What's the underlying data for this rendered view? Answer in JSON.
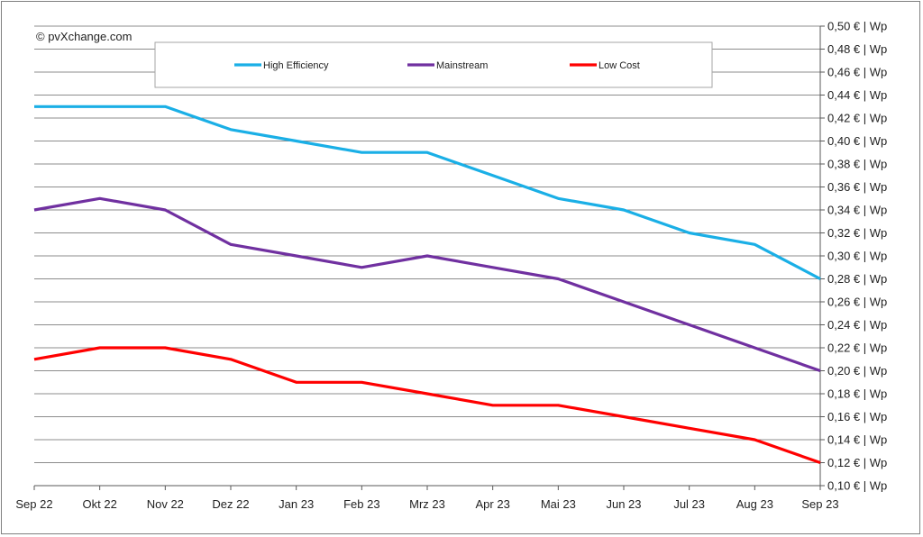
{
  "copyright": "© pvXchange.com",
  "chart_data": {
    "type": "line",
    "categories": [
      "Sep 22",
      "Okt 22",
      "Nov 22",
      "Dez 22",
      "Jan 23",
      "Feb 23",
      "Mrz 23",
      "Apr 23",
      "Mai 23",
      "Jun 23",
      "Jul 23",
      "Aug 23",
      "Sep 23"
    ],
    "y_tick_labels": [
      "0,10 € | Wp",
      "0,12 € | Wp",
      "0,14 € | Wp",
      "0,16 € | Wp",
      "0,18 € | Wp",
      "0,20 € | Wp",
      "0,22 € | Wp",
      "0,24 € | Wp",
      "0,26 € | Wp",
      "0,28 € | Wp",
      "0,30 € | Wp",
      "0,32 € | Wp",
      "0,34 € | Wp",
      "0,36 € | Wp",
      "0,38 € | Wp",
      "0,40 € | Wp",
      "0,42 € | Wp",
      "0,44 € | Wp",
      "0,46 € | Wp",
      "0,48 € | Wp",
      "0,50 € | Wp"
    ],
    "ylim": [
      0.1,
      0.5
    ],
    "ytick_step": 0.02,
    "y_axis_side": "right",
    "grid": true,
    "legend_position": "top",
    "series": [
      {
        "name": "High Efficiency",
        "color": "#1aafe6",
        "values": [
          0.43,
          0.43,
          0.43,
          0.41,
          0.4,
          0.39,
          0.39,
          0.37,
          0.35,
          0.34,
          0.32,
          0.31,
          0.28
        ]
      },
      {
        "name": "Mainstream",
        "color": "#7030a0",
        "values": [
          0.34,
          0.35,
          0.34,
          0.31,
          0.3,
          0.29,
          0.3,
          0.29,
          0.28,
          0.26,
          0.24,
          0.22,
          0.2
        ]
      },
      {
        "name": "Low Cost",
        "color": "#ff0000",
        "values": [
          0.21,
          0.22,
          0.22,
          0.21,
          0.19,
          0.19,
          0.18,
          0.17,
          0.17,
          0.16,
          0.15,
          0.14,
          0.12
        ]
      }
    ]
  }
}
